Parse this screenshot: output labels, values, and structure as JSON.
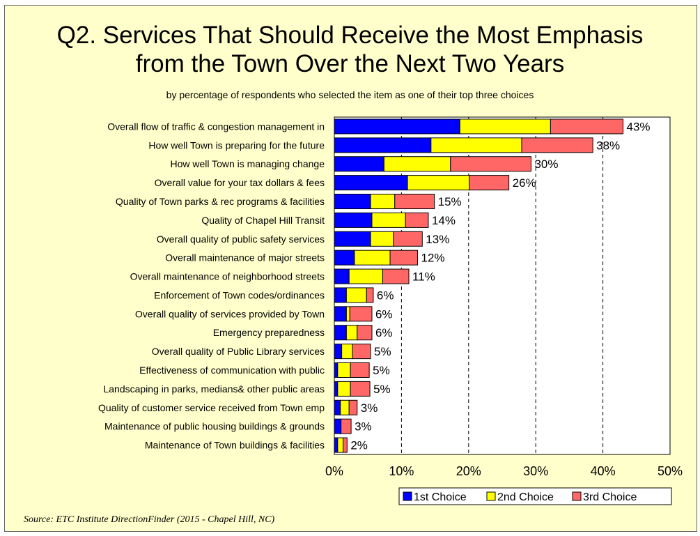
{
  "chart_data": {
    "type": "bar",
    "orientation": "horizontal",
    "stacked": true,
    "title_lines": [
      "Q2. Services That Should Receive the Most Emphasis",
      "from the Town Over the Next Two Years"
    ],
    "subtitle": "by percentage of respondents who selected the item as one of their top three choices",
    "categories": [
      "Overall flow of traffic & congestion management in",
      "How well Town is preparing for the future",
      "How well Town is managing change",
      "Overall value for your tax dollars & fees",
      "Quality of Town parks & rec programs & facilities",
      "Quality of Chapel Hill Transit",
      "Overall quality of public safety services",
      "Overall maintenance of major streets",
      "Overall maintenance of neighborhood streets",
      "Enforcement of Town codes/ordinances",
      "Overall quality of services provided by Town",
      "Emergency preparedness",
      "Overall quality of Public Library services",
      "Effectiveness of communication with public",
      "Landscaping in parks, medians& other public areas",
      "Quality of customer service received from Town emp",
      "Maintenance of public housing buildings & grounds",
      "Maintenance of Town buildings & facilities"
    ],
    "series": [
      {
        "name": "1st Choice",
        "color": "#0000ff",
        "values": [
          18.7,
          14.4,
          7.4,
          10.9,
          5.4,
          5.6,
          5.4,
          3.0,
          2.2,
          1.8,
          1.8,
          1.8,
          1.1,
          0.5,
          0.5,
          0.9,
          1.0,
          0.5
        ]
      },
      {
        "name": "2nd Choice",
        "color": "#ffff00",
        "values": [
          13.5,
          13.5,
          9.9,
          9.2,
          3.6,
          5.0,
          3.4,
          5.3,
          5.0,
          3.0,
          0.5,
          1.6,
          1.6,
          1.9,
          1.9,
          1.3,
          0.0,
          0.8
        ]
      },
      {
        "name": "3rd Choice",
        "color": "#ff6666",
        "values": [
          10.8,
          10.6,
          12.0,
          5.9,
          5.9,
          3.4,
          4.3,
          4.1,
          3.9,
          1.0,
          3.3,
          2.2,
          2.7,
          2.8,
          2.9,
          1.2,
          1.5,
          0.6
        ]
      }
    ],
    "data_labels": [
      "43%",
      "38%",
      "30%",
      "26%",
      "15%",
      "14%",
      "13%",
      "12%",
      "11%",
      "6%",
      "6%",
      "6%",
      "5%",
      "5%",
      "5%",
      "3%",
      "3%",
      "2%"
    ],
    "xlim": [
      0,
      50
    ],
    "xticks": [
      "0%",
      "10%",
      "20%",
      "30%",
      "40%",
      "50%"
    ],
    "grid": "vertical dashed",
    "legend_position": "bottom-right"
  },
  "source": "Source:  ETC Institute DirectionFinder (2015 - Chapel Hill, NC)"
}
